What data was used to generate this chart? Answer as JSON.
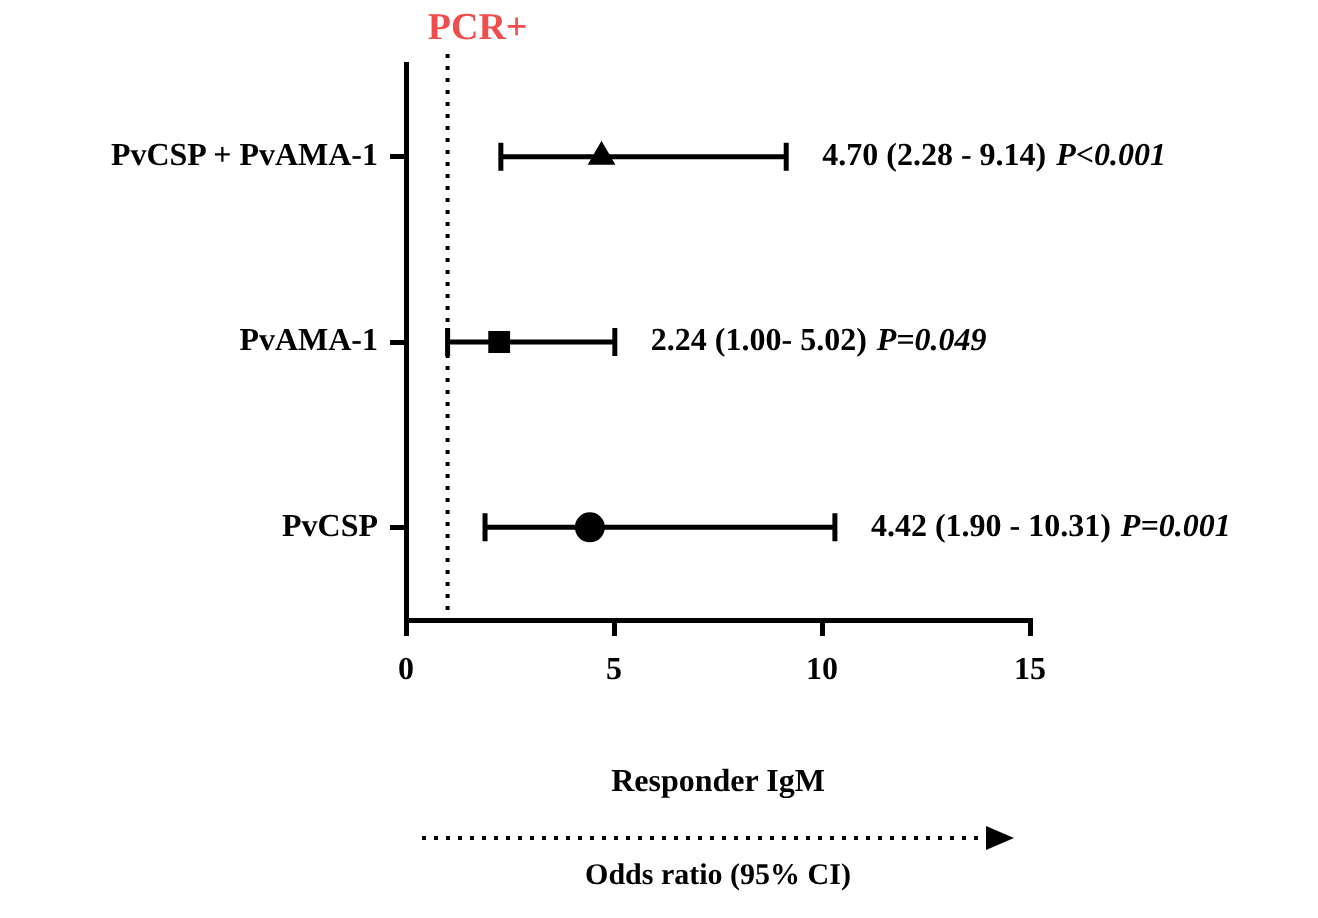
{
  "chart_data": {
    "type": "scatter",
    "orientation": "horizontal",
    "categories": [
      "PvCSP + PvAMA-1",
      "PvAMA-1",
      "PvCSP"
    ],
    "series": [
      {
        "color": "#000000",
        "marker": "triangle",
        "values": [
          4.7,
          null,
          null
        ],
        "errors": [
          [
            2.28,
            9.14
          ],
          null,
          null
        ]
      },
      {
        "color": "#000000",
        "marker": "square",
        "values": [
          null,
          2.24,
          null
        ],
        "errors": [
          null,
          [
            1.0,
            5.02
          ],
          null
        ]
      },
      {
        "color": "#000000",
        "marker": "circle",
        "values": [
          null,
          null,
          4.42
        ],
        "errors": [
          null,
          null,
          [
            1.9,
            10.31
          ]
        ]
      }
    ],
    "xlim": [
      0,
      15
    ],
    "xticks": [
      0,
      5,
      10,
      15
    ],
    "xlabel": "Responder IgM",
    "grid": false,
    "legend": false,
    "ref_lines": [
      {
        "axis": "x",
        "value": 1,
        "label": "PCR+",
        "line_style": "dotted"
      }
    ],
    "annotations": [
      "4.70 (2.28 - 9.14)",
      "P<0.001",
      "2.24 (1.00- 5.02)",
      "P=0.049",
      "4.42 (1.90 - 10.31)",
      "P=0.001",
      "Odds ratio (95% CI)"
    ]
  }
}
